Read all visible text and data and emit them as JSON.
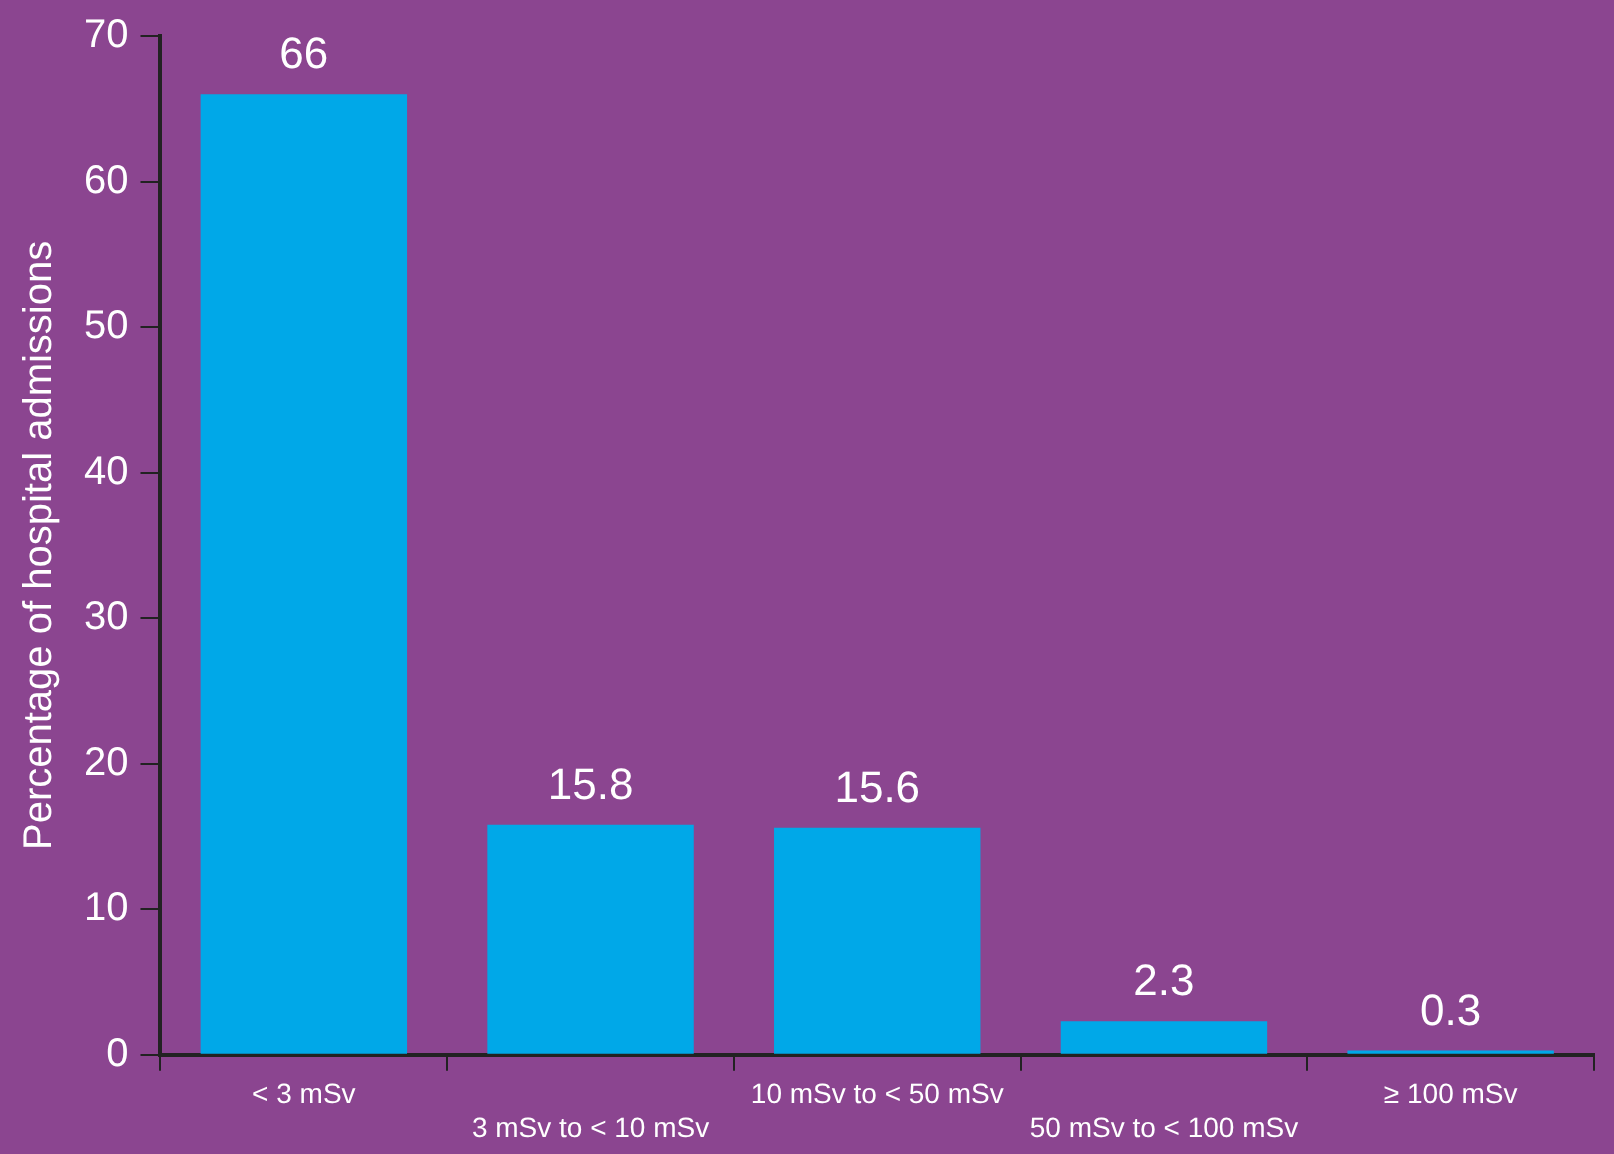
{
  "chart_data": {
    "type": "bar",
    "ylabel": "Percentage of hospital admissions",
    "categories": [
      "< 3 mSv",
      "3 mSv to < 10 mSv",
      "10 mSv to < 50 mSv",
      "50 mSv to < 100 mSv",
      "≥ 100 mSv"
    ],
    "values": [
      66,
      15.8,
      15.6,
      2.3,
      0.3
    ],
    "color": "#00a8e8",
    "ylim": [
      0,
      70
    ],
    "yticks": [
      0,
      10,
      20,
      30,
      40,
      50,
      60,
      70
    ],
    "grid": false,
    "legend": false,
    "data_labels": true
  }
}
